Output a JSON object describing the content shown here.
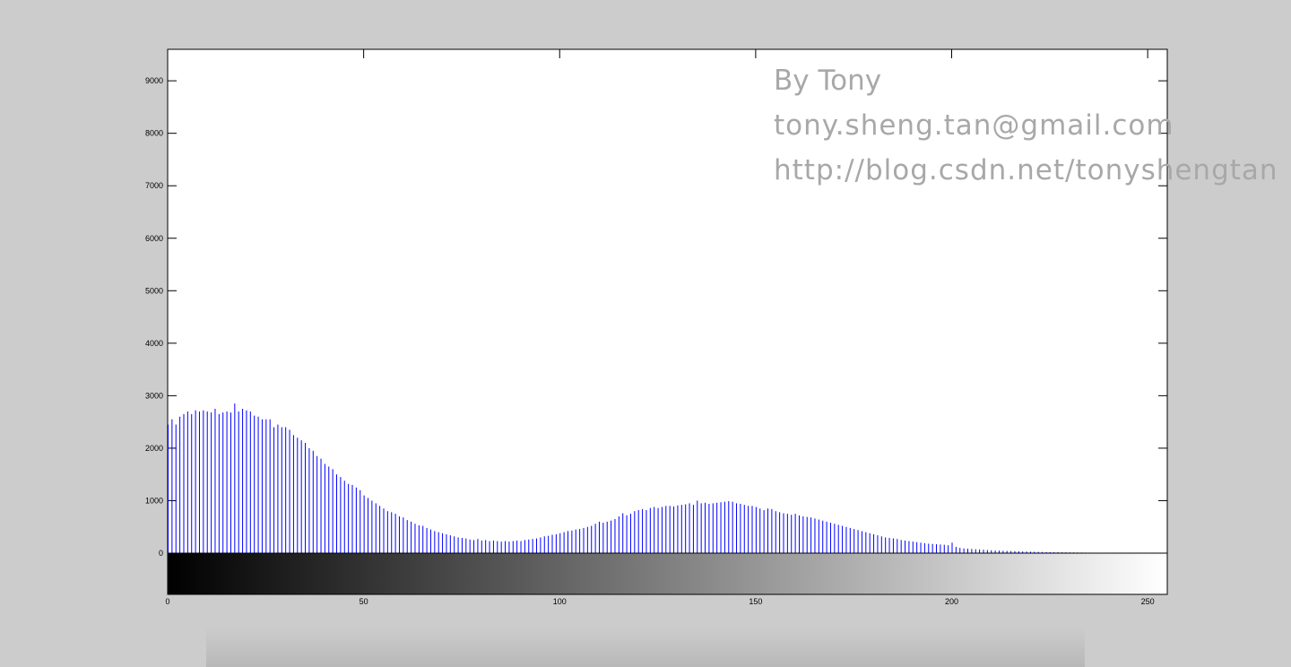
{
  "chart_data": {
    "type": "stem",
    "annotations": [
      "By Tony",
      "tony.sheng.tan@gmail.com",
      "http://blog.csdn.net/tonyshengtan"
    ],
    "color": "#0000ff",
    "xlim": [
      0,
      255
    ],
    "xticks": [
      0,
      50,
      100,
      150,
      200,
      250
    ],
    "ylim": [
      0,
      9600
    ],
    "yticks": [
      0,
      1000,
      2000,
      3000,
      4000,
      5000,
      6000,
      7000,
      8000,
      9000
    ],
    "values": [
      2450,
      2550,
      2450,
      2600,
      2650,
      2700,
      2650,
      2720,
      2700,
      2720,
      2700,
      2680,
      2750,
      2650,
      2680,
      2700,
      2680,
      2850,
      2700,
      2750,
      2720,
      2700,
      2620,
      2600,
      2550,
      2550,
      2550,
      2400,
      2450,
      2400,
      2400,
      2350,
      2250,
      2200,
      2150,
      2100,
      2000,
      1950,
      1850,
      1800,
      1700,
      1650,
      1600,
      1500,
      1450,
      1380,
      1320,
      1300,
      1250,
      1200,
      1100,
      1050,
      1000,
      950,
      900,
      850,
      800,
      780,
      750,
      700,
      680,
      630,
      600,
      560,
      530,
      520,
      480,
      450,
      420,
      400,
      380,
      360,
      340,
      320,
      300,
      290,
      280,
      260,
      250,
      270,
      240,
      250,
      230,
      240,
      230,
      220,
      230,
      220,
      230,
      240,
      230,
      250,
      260,
      270,
      280,
      300,
      320,
      330,
      350,
      360,
      380,
      400,
      420,
      430,
      450,
      460,
      480,
      500,
      520,
      560,
      600,
      580,
      600,
      620,
      650,
      700,
      760,
      720,
      750,
      800,
      820,
      840,
      820,
      860,
      880,
      860,
      880,
      900,
      900,
      890,
      910,
      920,
      930,
      950,
      920,
      1000,
      950,
      960,
      940,
      950,
      960,
      970,
      980,
      990,
      980,
      950,
      940,
      920,
      900,
      900,
      880,
      850,
      820,
      850,
      840,
      800,
      780,
      760,
      750,
      730,
      750,
      720,
      700,
      690,
      680,
      660,
      640,
      620,
      600,
      580,
      560,
      540,
      520,
      500,
      480,
      460,
      440,
      420,
      400,
      380,
      360,
      340,
      320,
      300,
      290,
      280,
      270,
      250,
      240,
      230,
      220,
      210,
      200,
      190,
      180,
      175,
      170,
      165,
      160,
      150,
      200,
      120,
      100,
      90,
      85,
      80,
      75,
      70,
      65,
      60,
      55,
      50,
      48,
      45,
      42,
      40,
      38,
      35,
      32,
      30,
      28,
      26,
      24,
      22,
      20,
      19,
      18,
      17,
      16,
      15,
      14,
      13,
      12,
      11,
      10,
      9,
      8,
      7,
      6,
      5,
      5,
      4,
      3,
      2,
      2,
      1,
      0,
      0,
      0,
      0,
      0,
      0,
      0,
      0,
      0,
      0
    ]
  }
}
